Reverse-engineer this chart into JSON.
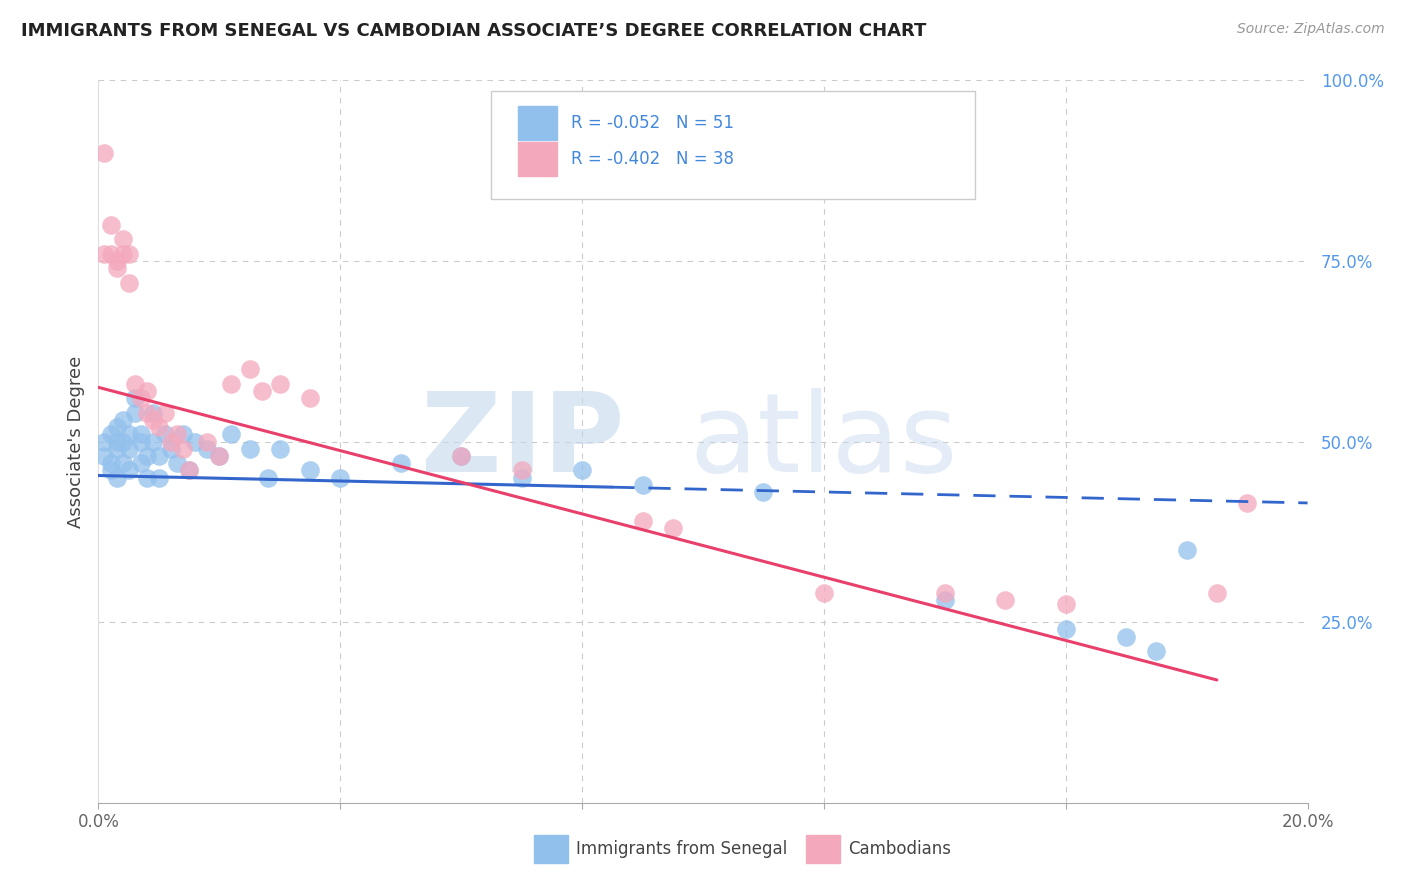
{
  "title": "IMMIGRANTS FROM SENEGAL VS CAMBODIAN ASSOCIATE’S DEGREE CORRELATION CHART",
  "source": "Source: ZipAtlas.com",
  "ylabel": "Associate's Degree",
  "x_min": 0.0,
  "x_max": 0.2,
  "y_min": 0.0,
  "y_max": 1.0,
  "blue_color": "#92C0EC",
  "pink_color": "#F4A8BC",
  "blue_line_color": "#3366CC",
  "pink_line_color": "#E8406A",
  "grid_color": "#CCCCCC",
  "blue_line_solid_end": 0.085,
  "blue_line_x0": 0.0,
  "blue_line_y0": 0.453,
  "blue_line_x1": 0.2,
  "blue_line_y1": 0.415,
  "pink_line_x0": 0.0,
  "pink_line_y0": 0.575,
  "pink_line_x1": 0.185,
  "pink_line_y1": 0.17,
  "blue_scatter_x": [
    0.001,
    0.001,
    0.002,
    0.002,
    0.002,
    0.003,
    0.003,
    0.003,
    0.003,
    0.004,
    0.004,
    0.004,
    0.005,
    0.005,
    0.005,
    0.006,
    0.006,
    0.007,
    0.007,
    0.007,
    0.008,
    0.008,
    0.009,
    0.009,
    0.01,
    0.01,
    0.011,
    0.012,
    0.013,
    0.014,
    0.015,
    0.016,
    0.018,
    0.02,
    0.022,
    0.025,
    0.028,
    0.03,
    0.035,
    0.04,
    0.05,
    0.06,
    0.07,
    0.08,
    0.09,
    0.11,
    0.14,
    0.16,
    0.17,
    0.175,
    0.18
  ],
  "blue_scatter_y": [
    0.48,
    0.5,
    0.46,
    0.47,
    0.51,
    0.49,
    0.5,
    0.45,
    0.52,
    0.47,
    0.5,
    0.53,
    0.49,
    0.51,
    0.46,
    0.54,
    0.56,
    0.5,
    0.51,
    0.47,
    0.45,
    0.48,
    0.5,
    0.54,
    0.45,
    0.48,
    0.51,
    0.49,
    0.47,
    0.51,
    0.46,
    0.5,
    0.49,
    0.48,
    0.51,
    0.49,
    0.45,
    0.49,
    0.46,
    0.45,
    0.47,
    0.48,
    0.45,
    0.46,
    0.44,
    0.43,
    0.28,
    0.24,
    0.23,
    0.21,
    0.35
  ],
  "pink_scatter_x": [
    0.001,
    0.001,
    0.002,
    0.002,
    0.003,
    0.003,
    0.004,
    0.004,
    0.005,
    0.005,
    0.006,
    0.007,
    0.008,
    0.008,
    0.009,
    0.01,
    0.011,
    0.012,
    0.013,
    0.014,
    0.015,
    0.018,
    0.02,
    0.022,
    0.025,
    0.027,
    0.03,
    0.035,
    0.06,
    0.07,
    0.09,
    0.095,
    0.12,
    0.14,
    0.15,
    0.16,
    0.185,
    0.19
  ],
  "pink_scatter_y": [
    0.9,
    0.76,
    0.76,
    0.8,
    0.74,
    0.75,
    0.76,
    0.78,
    0.72,
    0.76,
    0.58,
    0.56,
    0.54,
    0.57,
    0.53,
    0.52,
    0.54,
    0.5,
    0.51,
    0.49,
    0.46,
    0.5,
    0.48,
    0.58,
    0.6,
    0.57,
    0.58,
    0.56,
    0.48,
    0.46,
    0.39,
    0.38,
    0.29,
    0.29,
    0.28,
    0.275,
    0.29,
    0.415
  ]
}
